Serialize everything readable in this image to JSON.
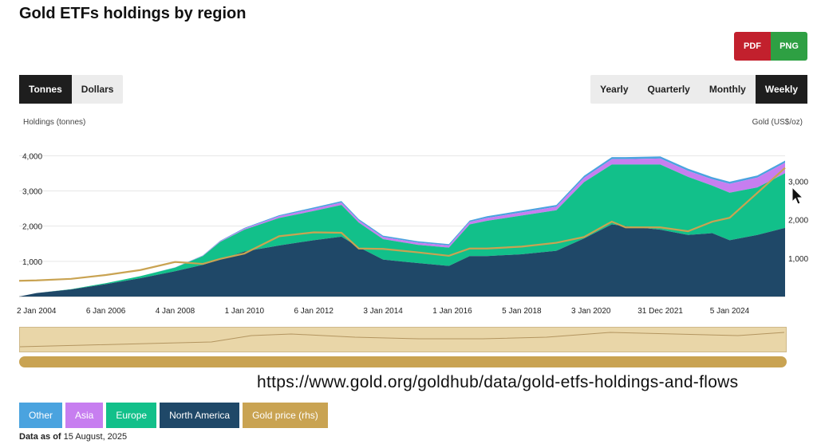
{
  "page": {
    "title": "Gold ETFs holdings by region",
    "url_caption": "https://www.gold.org/goldhub/data/gold-etfs-holdings-and-flows"
  },
  "export": {
    "pdf": "PDF",
    "png": "PNG"
  },
  "units": {
    "items": [
      "Tonnes",
      "Dollars"
    ],
    "selected": "Tonnes"
  },
  "periods": {
    "items": [
      "Yearly",
      "Quarterly",
      "Monthly",
      "Weekly"
    ],
    "selected": "Weekly"
  },
  "footer": {
    "data_as_of_label": "Data as of",
    "data_as_of_date": "15 August, 2025"
  },
  "colors": {
    "other": "#4aa3df",
    "asia": "#c77ef0",
    "europe": "#12c08a",
    "north_america": "#1f4868",
    "gold_price": "#c9a352"
  },
  "chart_data": {
    "type": "area",
    "title": "Gold ETFs holdings by region",
    "ylabel_left": "Holdings (tonnes)",
    "ylabel_right": "Gold (US$/oz)",
    "y_left_ticks": [
      "1,000",
      "2,000",
      "3,000",
      "4,000"
    ],
    "y_right_ticks": [
      "1,000",
      "2,000",
      "3,000"
    ],
    "ylim_left": [
      0,
      4800
    ],
    "ylim_right": [
      0,
      4400
    ],
    "x_labels": [
      "2 Jan 2004",
      "6 Jan 2006",
      "4 Jan 2008",
      "1 Jan 2010",
      "6 Jan 2012",
      "3 Jan 2014",
      "1 Jan 2016",
      "5 Jan 2018",
      "3 Jan 2020",
      "31 Dec 2021",
      "5 Jan 2024"
    ],
    "x": [
      2003.5,
      2004,
      2005,
      2006,
      2007,
      2008,
      2008.8,
      2009.3,
      2010,
      2011,
      2012,
      2012.8,
      2013.3,
      2014,
      2015,
      2015.9,
      2016.5,
      2017,
      2018,
      2019,
      2019.8,
      2020.6,
      2021,
      2022,
      2022.8,
      2023.5,
      2024,
      2024.8,
      2025.6
    ],
    "legend": [
      "Other",
      "Asia",
      "Europe",
      "North America",
      "Gold price (rhs)"
    ],
    "series": [
      {
        "name": "North America",
        "values": [
          0,
          100,
          200,
          350,
          520,
          720,
          900,
          1050,
          1280,
          1450,
          1600,
          1700,
          1400,
          1050,
          950,
          870,
          1150,
          1150,
          1200,
          1300,
          1650,
          2050,
          2000,
          1900,
          1750,
          1800,
          1600,
          1750,
          1950
        ]
      },
      {
        "name": "Europe",
        "values": [
          0,
          0,
          10,
          30,
          60,
          100,
          250,
          500,
          620,
          780,
          830,
          900,
          700,
          580,
          520,
          520,
          900,
          1000,
          1100,
          1150,
          1600,
          1700,
          1750,
          1850,
          1650,
          1350,
          1350,
          1350,
          1550
        ]
      },
      {
        "name": "Asia",
        "values": [
          0,
          0,
          0,
          0,
          0,
          5,
          10,
          20,
          30,
          50,
          60,
          70,
          60,
          60,
          60,
          60,
          70,
          80,
          90,
          100,
          120,
          150,
          150,
          170,
          170,
          180,
          250,
          280,
          300
        ]
      },
      {
        "name": "Other",
        "values": [
          0,
          0,
          0,
          0,
          0,
          5,
          10,
          15,
          20,
          30,
          40,
          40,
          40,
          40,
          40,
          40,
          40,
          50,
          50,
          50,
          60,
          60,
          60,
          60,
          60,
          60,
          60,
          60,
          60
        ]
      },
      {
        "name": "Gold price (rhs)",
        "values": [
          410,
          420,
          460,
          560,
          690,
          900,
          850,
          980,
          1120,
          1570,
          1670,
          1660,
          1250,
          1240,
          1150,
          1060,
          1250,
          1250,
          1300,
          1400,
          1550,
          1950,
          1800,
          1800,
          1700,
          1950,
          2050,
          2700,
          3350
        ]
      }
    ]
  }
}
